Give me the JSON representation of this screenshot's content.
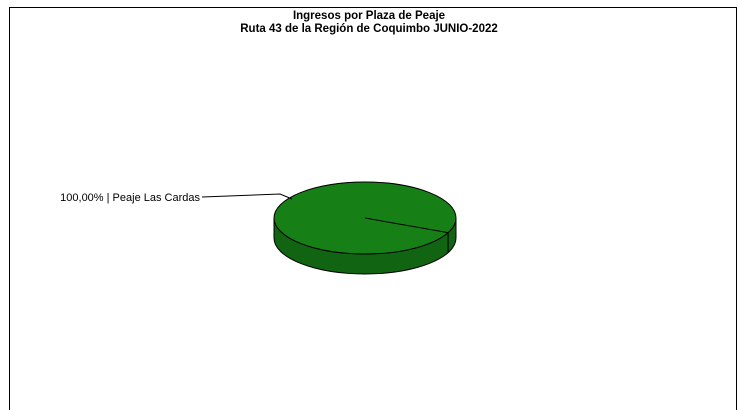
{
  "chart_data": {
    "type": "pie",
    "title": "Ingresos por Plaza de Peaje",
    "subtitle": "Ruta 43 de la Región de Coquimbo JUNIO-2022",
    "slices": [
      {
        "label": "Peaje Las Cardas",
        "value": 100.0,
        "percent_label": "100,00%",
        "display": "100,00% | Peaje Las Cardas",
        "color": "#168016"
      }
    ],
    "legend": "none",
    "style": "3d"
  }
}
